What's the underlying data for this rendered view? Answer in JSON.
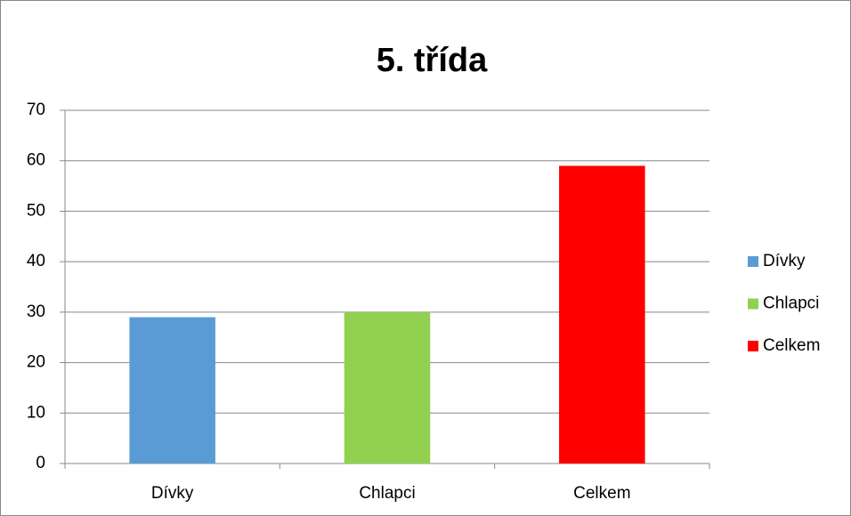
{
  "chart_data": {
    "type": "bar",
    "title": "5. třída",
    "categories": [
      "Dívky",
      "Chlapci",
      "Celkem"
    ],
    "values": [
      29,
      30,
      59
    ],
    "colors": [
      "#5b9bd5",
      "#92d050",
      "#ff0000"
    ],
    "ylim": [
      0,
      70
    ],
    "yticks": [
      0,
      10,
      20,
      30,
      40,
      50,
      60,
      70
    ],
    "grid": true,
    "legend": "right"
  }
}
